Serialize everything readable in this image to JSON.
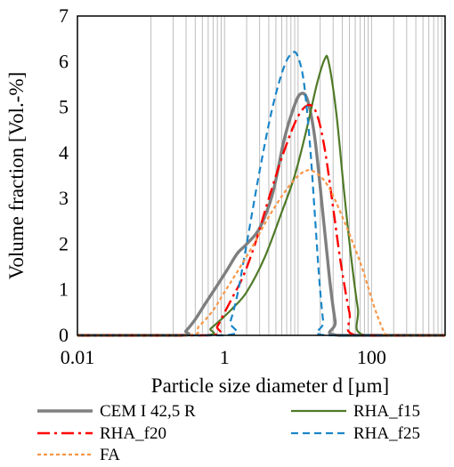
{
  "chart_data": {
    "type": "line",
    "xlabel": "Particle size diameter d [µm]",
    "ylabel": "Volume fraction [Vol.-%]",
    "x_scale": "log",
    "xlim": [
      0.01,
      1000
    ],
    "ylim": [
      0,
      7
    ],
    "grid": "vertical minor log gridlines between 0.1 and 100",
    "legend_position": "bottom",
    "x_tick_labels": [
      "0.01",
      "1",
      "100"
    ],
    "x_ticks": [
      0.01,
      1,
      100
    ],
    "y_ticks": [
      0,
      1,
      2,
      3,
      4,
      5,
      6,
      7
    ],
    "y_tick_labels": [
      "0",
      "1",
      "2",
      "3",
      "4",
      "5",
      "6",
      "7"
    ],
    "series": [
      {
        "name": "CEM I 42,5 R",
        "color": "#7f7f7f",
        "dash": "solid",
        "points": [
          [
            0.001,
            0
          ],
          [
            0.25,
            0
          ],
          [
            0.3,
            0.1
          ],
          [
            0.4,
            0.35
          ],
          [
            0.55,
            0.7
          ],
          [
            0.8,
            1.1
          ],
          [
            1.1,
            1.45
          ],
          [
            1.5,
            1.8
          ],
          [
            2.0,
            2.0
          ],
          [
            3.0,
            2.35
          ],
          [
            4.5,
            3.1
          ],
          [
            6.5,
            4.3
          ],
          [
            9.0,
            5.05
          ],
          [
            11.0,
            5.3
          ],
          [
            13.5,
            5.15
          ],
          [
            17.0,
            4.3
          ],
          [
            22.0,
            2.6
          ],
          [
            27.0,
            1.2
          ],
          [
            32.0,
            0.3
          ],
          [
            35.0,
            0
          ],
          [
            1000,
            0
          ]
        ]
      },
      {
        "name": "RHA_f15",
        "color": "#4f7a28",
        "dash": "solid",
        "points": [
          [
            0.001,
            0
          ],
          [
            0.5,
            0
          ],
          [
            0.65,
            0.15
          ],
          [
            0.9,
            0.35
          ],
          [
            1.3,
            0.6
          ],
          [
            2.0,
            0.95
          ],
          [
            3.5,
            1.7
          ],
          [
            6.0,
            2.7
          ],
          [
            9.0,
            3.5
          ],
          [
            13.0,
            4.5
          ],
          [
            18.0,
            5.5
          ],
          [
            23.0,
            6.05
          ],
          [
            26.0,
            6.0
          ],
          [
            33.0,
            4.9
          ],
          [
            42.0,
            3.2
          ],
          [
            52.0,
            1.8
          ],
          [
            65.0,
            0.6
          ],
          [
            80.0,
            0
          ],
          [
            1000,
            0
          ]
        ]
      },
      {
        "name": "RHA_f20",
        "color": "#ff0000",
        "dash": "dashdot",
        "points": [
          [
            0.001,
            0
          ],
          [
            0.6,
            0
          ],
          [
            0.8,
            0.2
          ],
          [
            1.0,
            0.5
          ],
          [
            1.3,
            0.85
          ],
          [
            1.8,
            1.3
          ],
          [
            2.6,
            2.0
          ],
          [
            4.0,
            3.0
          ],
          [
            6.5,
            4.05
          ],
          [
            10.0,
            4.8
          ],
          [
            14.0,
            5.05
          ],
          [
            18.0,
            4.85
          ],
          [
            23.0,
            4.1
          ],
          [
            30.0,
            2.8
          ],
          [
            38.0,
            1.6
          ],
          [
            50.0,
            0.5
          ],
          [
            62.0,
            0
          ],
          [
            1000,
            0
          ]
        ]
      },
      {
        "name": "RHA_f25",
        "color": "#1a86c8",
        "dash": "dashed",
        "points": [
          [
            0.001,
            0
          ],
          [
            1.0,
            0
          ],
          [
            1.2,
            0.3
          ],
          [
            1.5,
            0.9
          ],
          [
            2.0,
            2.0
          ],
          [
            3.0,
            3.6
          ],
          [
            4.5,
            5.0
          ],
          [
            6.5,
            5.9
          ],
          [
            8.5,
            6.2
          ],
          [
            10.0,
            6.1
          ],
          [
            12.0,
            5.55
          ],
          [
            14.5,
            4.2
          ],
          [
            17.0,
            2.6
          ],
          [
            19.5,
            1.2
          ],
          [
            22.0,
            0.3
          ],
          [
            24.0,
            0
          ],
          [
            1000,
            0
          ]
        ]
      },
      {
        "name": "FA",
        "color": "#f79646",
        "dash": "dotted",
        "points": [
          [
            0.001,
            0
          ],
          [
            0.3,
            0
          ],
          [
            0.45,
            0.2
          ],
          [
            0.7,
            0.55
          ],
          [
            1.0,
            0.95
          ],
          [
            1.5,
            1.4
          ],
          [
            2.5,
            2.0
          ],
          [
            4.0,
            2.6
          ],
          [
            7.0,
            3.2
          ],
          [
            11.0,
            3.55
          ],
          [
            16.0,
            3.6
          ],
          [
            25.0,
            3.3
          ],
          [
            40.0,
            2.6
          ],
          [
            70.0,
            1.6
          ],
          [
            110.0,
            0.6
          ],
          [
            150.0,
            0.05
          ],
          [
            170.0,
            0
          ],
          [
            1000,
            0
          ]
        ]
      }
    ]
  }
}
